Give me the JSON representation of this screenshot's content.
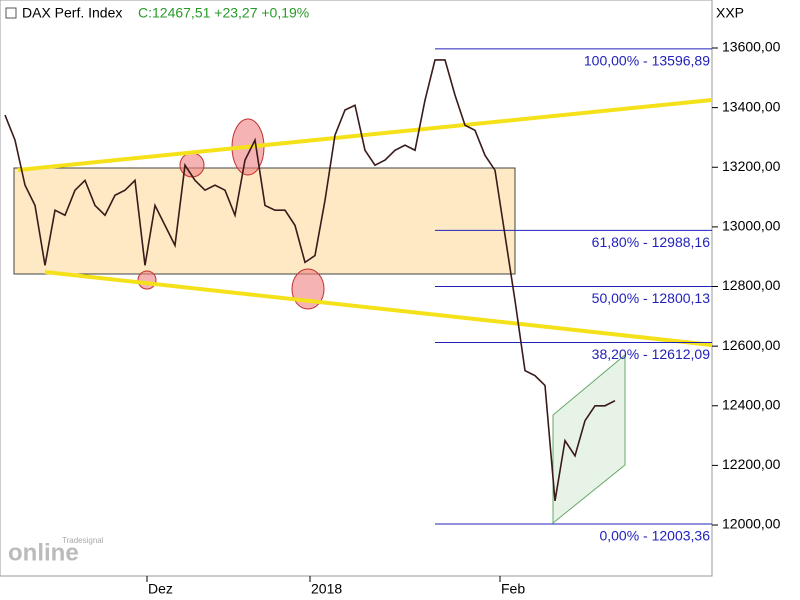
{
  "chart_data": {
    "type": "line",
    "title": "DAX Perf. Index",
    "quote": "C:12467,51 +23,27 +0,19%",
    "currency": "XXP",
    "logo": {
      "small": "Tradesignal",
      "big": "online"
    },
    "color": "#3a1a1a",
    "values": [
      13375,
      13291,
      13140,
      13072,
      12871,
      13056,
      13039,
      13123,
      13156,
      13072,
      13039,
      13106,
      13123,
      13156,
      12871,
      13072,
      13005,
      12938,
      13207,
      13156,
      13123,
      13140,
      13123,
      13039,
      13224,
      13291,
      13072,
      13056,
      13056,
      13005,
      12881,
      12904,
      13089,
      13308,
      13392,
      13408,
      13257,
      13207,
      13224,
      13257,
      13274,
      13257,
      13425,
      13560,
      13560,
      13442,
      13341,
      13324,
      13240,
      13190,
      12972,
      12753,
      12518,
      12501,
      12468,
      12081,
      12283,
      12232,
      12350,
      12400,
      12400,
      12417
    ],
    "xticks": [
      {
        "value": 14.2,
        "label": "Dez"
      },
      {
        "value": 30.5,
        "label": "2018"
      },
      {
        "value": 49.5,
        "label": "Feb"
      }
    ],
    "ylim": [
      11829,
      13761
    ],
    "yticks": [
      {
        "value": 12000,
        "label": "12000,00"
      },
      {
        "value": 12200,
        "label": "12200,00"
      },
      {
        "value": 12400,
        "label": "12400,00"
      },
      {
        "value": 12600,
        "label": "12600,00"
      },
      {
        "value": 12800,
        "label": "12800,00"
      },
      {
        "value": 13000,
        "label": "13000,00"
      },
      {
        "value": 13200,
        "label": "13200,00"
      },
      {
        "value": 13400,
        "label": "13400,00"
      },
      {
        "value": 13600,
        "label": "13600,00"
      }
    ],
    "fib_levels": [
      {
        "value": 13596.89,
        "label": "100,00% - 13596,89"
      },
      {
        "value": 12988.16,
        "label": "61,80% - 12988,16"
      },
      {
        "value": 12800.13,
        "label": "50,00% - 12800,13"
      },
      {
        "value": 12612.09,
        "label": "38,20% - 12612,09"
      },
      {
        "value": 12003.36,
        "label": "0,00% - 12003,36"
      }
    ],
    "fib_color": "#2222bb"
  }
}
